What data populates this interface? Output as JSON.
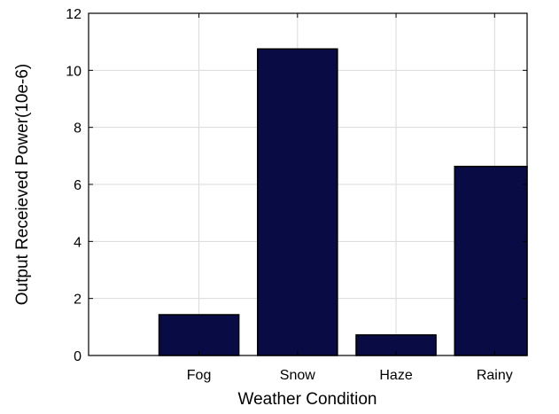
{
  "chart_data": {
    "type": "bar",
    "categories": [
      "Fog",
      "Snow",
      "Haze",
      "Rainy"
    ],
    "values": [
      1.43,
      10.75,
      0.72,
      6.63
    ],
    "xlabel": "Weather Condition",
    "ylabel": "Output Receieved Power(10e-6)",
    "ylim": [
      0,
      12
    ],
    "yticks": [
      "0",
      "2",
      "4",
      "6",
      "8",
      "10",
      "12"
    ],
    "grid": true,
    "colors": {
      "bar_fill": "#090b45",
      "bar_stroke": "#000000",
      "grid": "#d9d9d9",
      "axis": "#000000"
    }
  }
}
